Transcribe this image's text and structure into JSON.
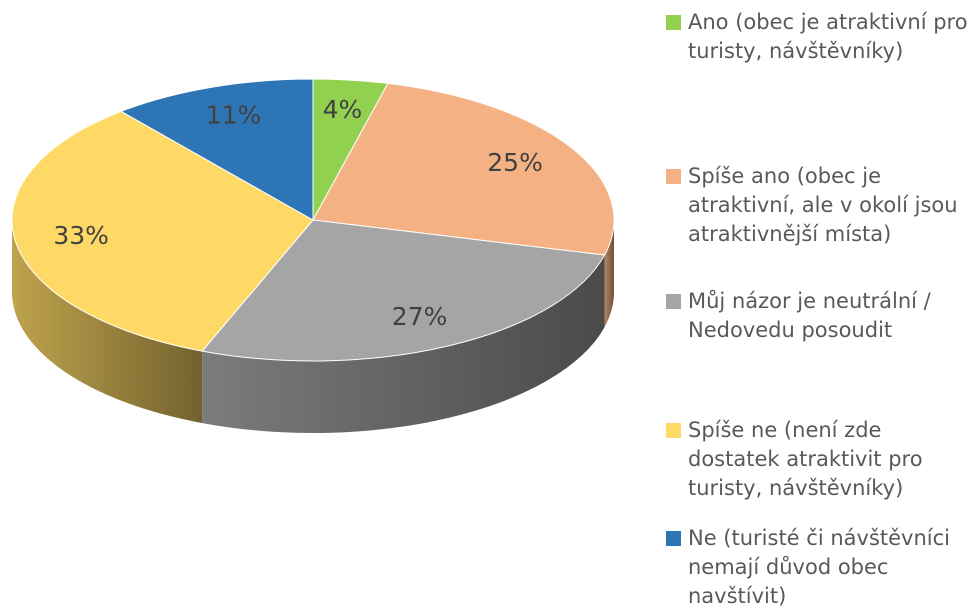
{
  "chart_data": {
    "type": "pie",
    "categories": [
      "Ano (obec je atraktivní pro turisty, návštěvníky)",
      "Spíše ano (obec je atraktivní, ale v okolí jsou atraktivnější místa)",
      "Můj názor je neutrální / Nedovedu posoudit",
      "Spíše ne (není zde dostatek atraktivit pro turisty, návštěvníky)",
      "Ne (turisté či návštěvníci nemají důvod obec navštívit)"
    ],
    "values": [
      4,
      25,
      27,
      33,
      11
    ],
    "value_labels": [
      "4%",
      "25%",
      "27%",
      "33%",
      "11%"
    ],
    "colors": [
      "#92d050",
      "#f4b183",
      "#a5a5a5",
      "#ffd966",
      "#2e75b6"
    ],
    "legend": "right"
  }
}
